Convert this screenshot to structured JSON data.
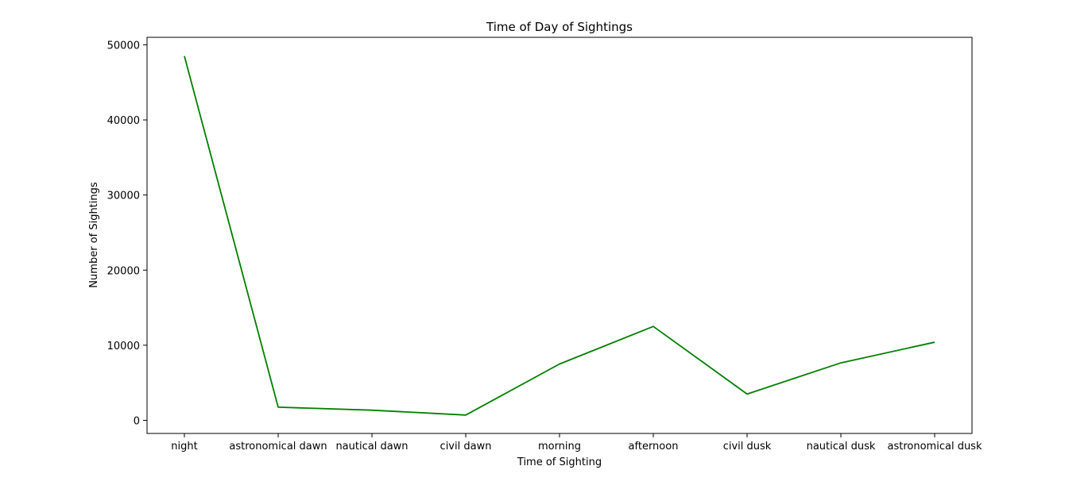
{
  "chart_data": {
    "type": "line",
    "title": "Time of Day of Sightings",
    "xlabel": "Time of Sighting",
    "ylabel": "Number of Sightings",
    "categories": [
      "night",
      "astronomical dawn",
      "nautical dawn",
      "civil dawn",
      "morning",
      "afternoon",
      "civil dusk",
      "nautical dusk",
      "astronomical dusk"
    ],
    "series": [
      {
        "values": [
          48500,
          1750,
          1350,
          700,
          7500,
          12500,
          3500,
          7650,
          10400
        ],
        "color": "#008000"
      }
    ],
    "ylim": [
      -1750,
      51000
    ],
    "yticks": [
      0,
      10000,
      20000,
      30000,
      40000,
      50000
    ],
    "grid": false,
    "legend": "none"
  }
}
